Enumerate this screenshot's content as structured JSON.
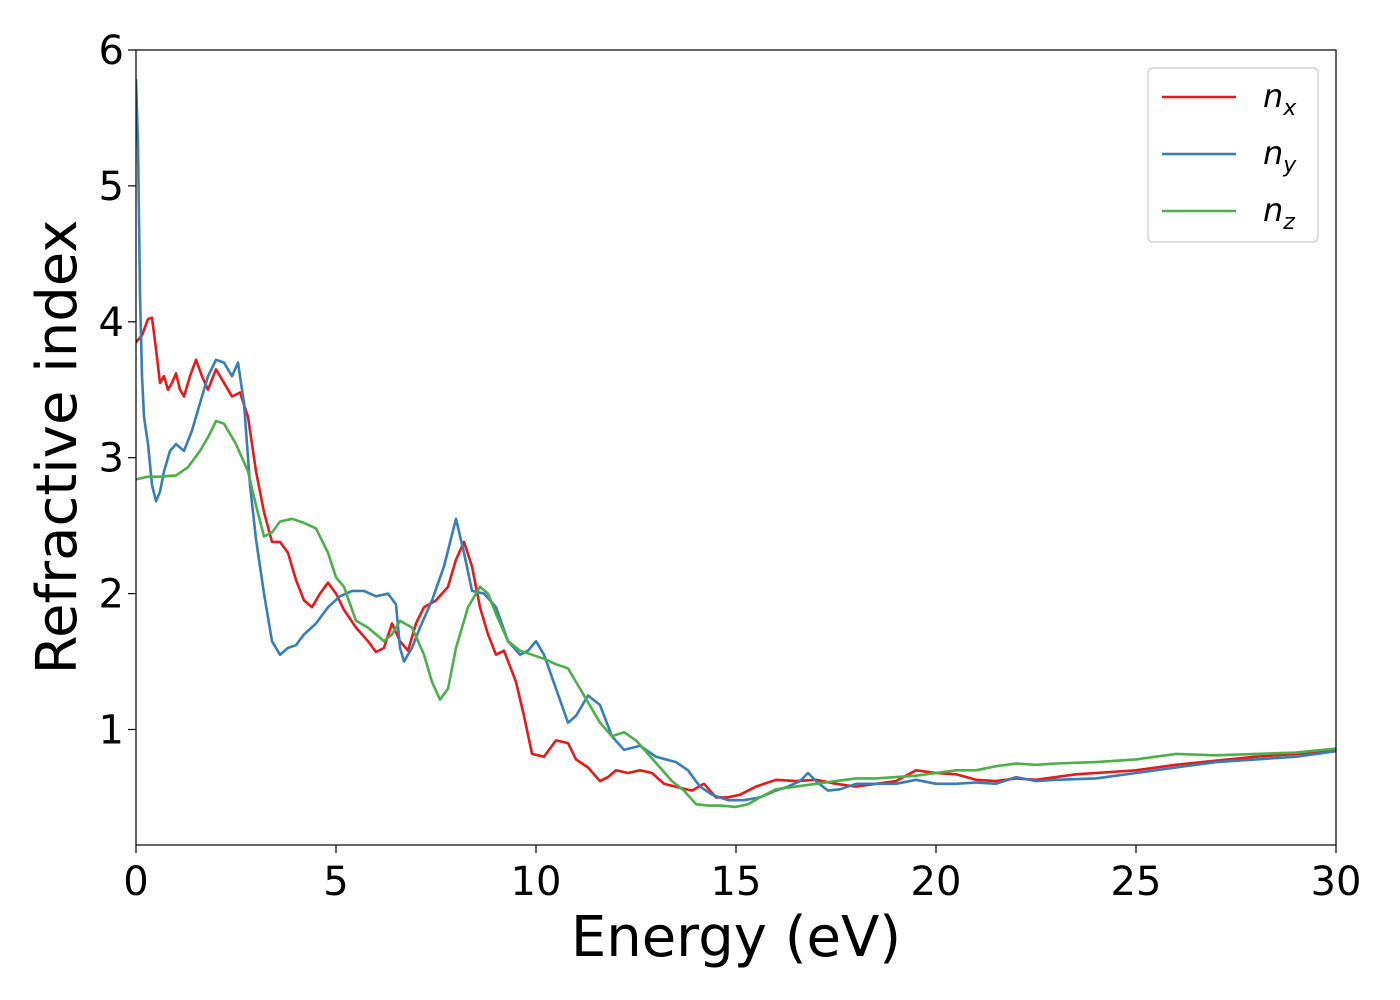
{
  "chart_data": {
    "type": "line",
    "xlabel": "Energy (eV)",
    "ylabel": "Refractive index",
    "xlim": [
      0,
      30
    ],
    "ylim": [
      0.15,
      6.0
    ],
    "xticks": [
      0,
      5,
      10,
      15,
      20,
      25,
      30
    ],
    "yticks": [
      1,
      2,
      3,
      4,
      5,
      6
    ],
    "xtick_labels": [
      "0",
      "5",
      "10",
      "15",
      "20",
      "25",
      "30"
    ],
    "ytick_labels": [
      "1",
      "2",
      "3",
      "4",
      "5",
      "6"
    ],
    "grid": false,
    "legend_position": "top-right",
    "series": [
      {
        "name": "n",
        "subscript": "x",
        "color": "#e41a1c",
        "points": [
          [
            0,
            3.85
          ],
          [
            0.15,
            3.9
          ],
          [
            0.3,
            4.02
          ],
          [
            0.4,
            4.03
          ],
          [
            0.5,
            3.8
          ],
          [
            0.6,
            3.55
          ],
          [
            0.7,
            3.6
          ],
          [
            0.8,
            3.5
          ],
          [
            0.9,
            3.55
          ],
          [
            1.0,
            3.62
          ],
          [
            1.1,
            3.5
          ],
          [
            1.2,
            3.45
          ],
          [
            1.35,
            3.6
          ],
          [
            1.5,
            3.72
          ],
          [
            1.65,
            3.6
          ],
          [
            1.8,
            3.5
          ],
          [
            2.0,
            3.65
          ],
          [
            2.2,
            3.55
          ],
          [
            2.4,
            3.45
          ],
          [
            2.6,
            3.48
          ],
          [
            2.8,
            3.3
          ],
          [
            3.0,
            2.9
          ],
          [
            3.2,
            2.6
          ],
          [
            3.4,
            2.38
          ],
          [
            3.6,
            2.38
          ],
          [
            3.8,
            2.3
          ],
          [
            4.0,
            2.1
          ],
          [
            4.2,
            1.95
          ],
          [
            4.4,
            1.9
          ],
          [
            4.6,
            2.0
          ],
          [
            4.8,
            2.08
          ],
          [
            5.0,
            2.0
          ],
          [
            5.2,
            1.88
          ],
          [
            5.5,
            1.75
          ],
          [
            5.8,
            1.65
          ],
          [
            6.0,
            1.57
          ],
          [
            6.2,
            1.6
          ],
          [
            6.4,
            1.78
          ],
          [
            6.6,
            1.65
          ],
          [
            6.8,
            1.58
          ],
          [
            7.0,
            1.78
          ],
          [
            7.2,
            1.9
          ],
          [
            7.5,
            1.95
          ],
          [
            7.8,
            2.05
          ],
          [
            8.0,
            2.25
          ],
          [
            8.2,
            2.38
          ],
          [
            8.4,
            2.2
          ],
          [
            8.6,
            1.9
          ],
          [
            8.8,
            1.7
          ],
          [
            9.0,
            1.55
          ],
          [
            9.2,
            1.58
          ],
          [
            9.5,
            1.35
          ],
          [
            9.7,
            1.1
          ],
          [
            9.9,
            0.82
          ],
          [
            10.2,
            0.8
          ],
          [
            10.5,
            0.92
          ],
          [
            10.8,
            0.9
          ],
          [
            11.0,
            0.78
          ],
          [
            11.3,
            0.72
          ],
          [
            11.6,
            0.62
          ],
          [
            11.8,
            0.65
          ],
          [
            12.0,
            0.7
          ],
          [
            12.3,
            0.68
          ],
          [
            12.6,
            0.7
          ],
          [
            12.9,
            0.68
          ],
          [
            13.2,
            0.6
          ],
          [
            13.6,
            0.57
          ],
          [
            13.9,
            0.55
          ],
          [
            14.2,
            0.6
          ],
          [
            14.5,
            0.5
          ],
          [
            14.8,
            0.5
          ],
          [
            15.1,
            0.52
          ],
          [
            15.5,
            0.58
          ],
          [
            16.0,
            0.63
          ],
          [
            16.5,
            0.62
          ],
          [
            17.0,
            0.63
          ],
          [
            17.5,
            0.6
          ],
          [
            18.0,
            0.58
          ],
          [
            18.5,
            0.6
          ],
          [
            19.0,
            0.62
          ],
          [
            19.5,
            0.7
          ],
          [
            20.0,
            0.68
          ],
          [
            20.5,
            0.67
          ],
          [
            21.0,
            0.63
          ],
          [
            21.5,
            0.62
          ],
          [
            22.0,
            0.64
          ],
          [
            22.5,
            0.63
          ],
          [
            23.0,
            0.65
          ],
          [
            23.5,
            0.67
          ],
          [
            24.0,
            0.68
          ],
          [
            25.0,
            0.7
          ],
          [
            26.0,
            0.74
          ],
          [
            27.0,
            0.77
          ],
          [
            28.0,
            0.8
          ],
          [
            29.0,
            0.82
          ],
          [
            30.0,
            0.85
          ]
        ]
      },
      {
        "name": "n",
        "subscript": "y",
        "color": "#377eb8",
        "points": [
          [
            0,
            5.78
          ],
          [
            0.05,
            5.3
          ],
          [
            0.1,
            4.2
          ],
          [
            0.15,
            3.6
          ],
          [
            0.2,
            3.3
          ],
          [
            0.3,
            3.1
          ],
          [
            0.4,
            2.8
          ],
          [
            0.5,
            2.68
          ],
          [
            0.6,
            2.75
          ],
          [
            0.7,
            2.9
          ],
          [
            0.85,
            3.05
          ],
          [
            1.0,
            3.1
          ],
          [
            1.2,
            3.05
          ],
          [
            1.4,
            3.2
          ],
          [
            1.6,
            3.4
          ],
          [
            1.8,
            3.6
          ],
          [
            2.0,
            3.72
          ],
          [
            2.2,
            3.7
          ],
          [
            2.4,
            3.6
          ],
          [
            2.55,
            3.7
          ],
          [
            2.7,
            3.4
          ],
          [
            2.85,
            2.8
          ],
          [
            3.0,
            2.4
          ],
          [
            3.2,
            2.0
          ],
          [
            3.4,
            1.65
          ],
          [
            3.6,
            1.55
          ],
          [
            3.8,
            1.6
          ],
          [
            4.0,
            1.62
          ],
          [
            4.2,
            1.7
          ],
          [
            4.5,
            1.78
          ],
          [
            4.8,
            1.9
          ],
          [
            5.1,
            1.98
          ],
          [
            5.4,
            2.02
          ],
          [
            5.7,
            2.02
          ],
          [
            6.0,
            1.98
          ],
          [
            6.3,
            2.0
          ],
          [
            6.5,
            1.92
          ],
          [
            6.6,
            1.6
          ],
          [
            6.7,
            1.5
          ],
          [
            6.9,
            1.6
          ],
          [
            7.1,
            1.75
          ],
          [
            7.4,
            1.95
          ],
          [
            7.7,
            2.2
          ],
          [
            8.0,
            2.55
          ],
          [
            8.2,
            2.3
          ],
          [
            8.4,
            2.02
          ],
          [
            8.7,
            2.0
          ],
          [
            9.0,
            1.9
          ],
          [
            9.3,
            1.65
          ],
          [
            9.6,
            1.55
          ],
          [
            9.8,
            1.58
          ],
          [
            10.0,
            1.65
          ],
          [
            10.2,
            1.55
          ],
          [
            10.5,
            1.3
          ],
          [
            10.8,
            1.05
          ],
          [
            11.0,
            1.1
          ],
          [
            11.3,
            1.25
          ],
          [
            11.6,
            1.18
          ],
          [
            11.9,
            0.95
          ],
          [
            12.2,
            0.85
          ],
          [
            12.6,
            0.88
          ],
          [
            13.0,
            0.8
          ],
          [
            13.5,
            0.76
          ],
          [
            13.8,
            0.7
          ],
          [
            14.1,
            0.58
          ],
          [
            14.4,
            0.52
          ],
          [
            14.8,
            0.48
          ],
          [
            15.2,
            0.48
          ],
          [
            15.6,
            0.5
          ],
          [
            16.0,
            0.55
          ],
          [
            16.3,
            0.58
          ],
          [
            16.6,
            0.62
          ],
          [
            16.8,
            0.68
          ],
          [
            17.0,
            0.62
          ],
          [
            17.3,
            0.55
          ],
          [
            17.6,
            0.56
          ],
          [
            18.0,
            0.6
          ],
          [
            18.5,
            0.6
          ],
          [
            19.0,
            0.6
          ],
          [
            19.5,
            0.63
          ],
          [
            20.0,
            0.6
          ],
          [
            20.5,
            0.6
          ],
          [
            21.0,
            0.61
          ],
          [
            21.5,
            0.6
          ],
          [
            22.0,
            0.65
          ],
          [
            22.5,
            0.62
          ],
          [
            23.0,
            0.63
          ],
          [
            24.0,
            0.64
          ],
          [
            25.0,
            0.68
          ],
          [
            26.0,
            0.72
          ],
          [
            27.0,
            0.76
          ],
          [
            28.0,
            0.78
          ],
          [
            29.0,
            0.8
          ],
          [
            30.0,
            0.84
          ]
        ]
      },
      {
        "name": "n",
        "subscript": "z",
        "color": "#4daf4a",
        "points": [
          [
            0,
            2.84
          ],
          [
            0.3,
            2.86
          ],
          [
            0.6,
            2.86
          ],
          [
            1.0,
            2.87
          ],
          [
            1.3,
            2.93
          ],
          [
            1.6,
            3.05
          ],
          [
            1.8,
            3.15
          ],
          [
            2.0,
            3.27
          ],
          [
            2.2,
            3.25
          ],
          [
            2.5,
            3.1
          ],
          [
            2.8,
            2.9
          ],
          [
            3.0,
            2.65
          ],
          [
            3.2,
            2.42
          ],
          [
            3.4,
            2.45
          ],
          [
            3.6,
            2.53
          ],
          [
            3.9,
            2.55
          ],
          [
            4.2,
            2.52
          ],
          [
            4.5,
            2.48
          ],
          [
            4.8,
            2.3
          ],
          [
            5.0,
            2.12
          ],
          [
            5.2,
            2.05
          ],
          [
            5.5,
            1.8
          ],
          [
            5.8,
            1.75
          ],
          [
            6.0,
            1.7
          ],
          [
            6.2,
            1.65
          ],
          [
            6.4,
            1.7
          ],
          [
            6.6,
            1.8
          ],
          [
            6.9,
            1.75
          ],
          [
            7.2,
            1.55
          ],
          [
            7.4,
            1.35
          ],
          [
            7.6,
            1.22
          ],
          [
            7.8,
            1.3
          ],
          [
            8.0,
            1.6
          ],
          [
            8.3,
            1.9
          ],
          [
            8.6,
            2.05
          ],
          [
            8.8,
            2.0
          ],
          [
            9.0,
            1.85
          ],
          [
            9.3,
            1.65
          ],
          [
            9.6,
            1.58
          ],
          [
            9.9,
            1.55
          ],
          [
            10.2,
            1.52
          ],
          [
            10.5,
            1.48
          ],
          [
            10.8,
            1.45
          ],
          [
            11.0,
            1.35
          ],
          [
            11.3,
            1.2
          ],
          [
            11.6,
            1.05
          ],
          [
            11.9,
            0.95
          ],
          [
            12.2,
            0.98
          ],
          [
            12.5,
            0.92
          ],
          [
            12.8,
            0.82
          ],
          [
            13.1,
            0.72
          ],
          [
            13.4,
            0.62
          ],
          [
            13.7,
            0.55
          ],
          [
            14.0,
            0.45
          ],
          [
            14.3,
            0.44
          ],
          [
            14.6,
            0.44
          ],
          [
            15.0,
            0.43
          ],
          [
            15.3,
            0.45
          ],
          [
            15.6,
            0.5
          ],
          [
            16.0,
            0.56
          ],
          [
            16.5,
            0.58
          ],
          [
            17.0,
            0.6
          ],
          [
            17.5,
            0.62
          ],
          [
            18.0,
            0.64
          ],
          [
            18.5,
            0.64
          ],
          [
            19.0,
            0.65
          ],
          [
            19.5,
            0.66
          ],
          [
            20.0,
            0.68
          ],
          [
            20.5,
            0.7
          ],
          [
            21.0,
            0.7
          ],
          [
            21.5,
            0.73
          ],
          [
            22.0,
            0.75
          ],
          [
            22.5,
            0.74
          ],
          [
            23.0,
            0.75
          ],
          [
            24.0,
            0.76
          ],
          [
            25.0,
            0.78
          ],
          [
            26.0,
            0.82
          ],
          [
            27.0,
            0.81
          ],
          [
            28.0,
            0.82
          ],
          [
            29.0,
            0.83
          ],
          [
            30.0,
            0.86
          ]
        ]
      }
    ]
  }
}
